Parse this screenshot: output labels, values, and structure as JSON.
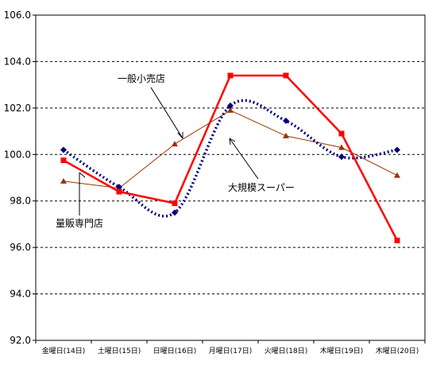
{
  "chart_data": {
    "type": "line",
    "categories": [
      "金曜日(14日)",
      "土曜日(15日)",
      "日曜日(16日)",
      "月曜日(17日)",
      "火曜日(18日)",
      "木曜日(19日)",
      "木曜日(20日)"
    ],
    "ylim": [
      92.0,
      106.0
    ],
    "yticks": [
      "92.0",
      "94.0",
      "96.0",
      "98.0",
      "100.0",
      "102.0",
      "104.0",
      "106.0"
    ],
    "grid": true,
    "series": [
      {
        "name": "量販専門店",
        "color": "#ff0000",
        "marker": "square",
        "style": "solid-thick",
        "values": [
          99.75,
          98.4,
          97.9,
          103.4,
          103.4,
          100.9,
          96.3
        ]
      },
      {
        "name": "一般小売店",
        "color": "#993300",
        "marker": "triangle",
        "style": "solid-thin",
        "values": [
          98.85,
          98.55,
          100.45,
          101.9,
          100.8,
          100.3,
          99.1
        ]
      },
      {
        "name": "大規模スーパー",
        "color": "#000080",
        "marker": "diamond",
        "style": "dotted",
        "values": [
          100.2,
          98.6,
          97.5,
          102.1,
          101.45,
          99.9,
          100.2
        ]
      }
    ],
    "annotations": {
      "general": "一般小売店",
      "super": "大規模スーパー",
      "mass": "量販専門店"
    }
  }
}
